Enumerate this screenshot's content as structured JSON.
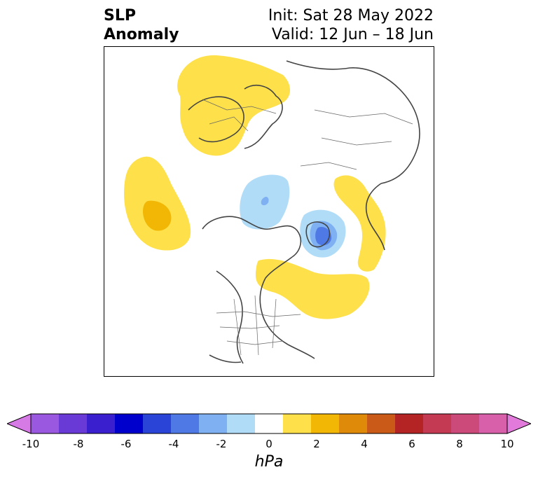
{
  "header": {
    "title_line1": "SLP",
    "title_line2": "Anomaly",
    "init_text": "Init: Sat 28 May 2022",
    "valid_text": "Valid: 12 Jun – 18 Jun"
  },
  "colorbar": {
    "units": "hPa",
    "ticks": [
      "-10",
      "-8",
      "-6",
      "-4",
      "-2",
      "0",
      "2",
      "4",
      "6",
      "8",
      "10"
    ],
    "colors": [
      "#d67ae6",
      "#9a57e0",
      "#6a3ad6",
      "#3a1fcf",
      "#0000cc",
      "#2a44d8",
      "#4f7ae6",
      "#7fb0f2",
      "#b0dcf8",
      "#ffffff",
      "#fde04a",
      "#f2b705",
      "#e08a0a",
      "#c95a18",
      "#b42424",
      "#c43a52",
      "#cc4a7a",
      "#d860aa",
      "#e27adb"
    ],
    "extend": "both"
  },
  "map": {
    "region": "Northern Hemisphere polar stereographic",
    "features": [
      {
        "name": "positive-anomaly-europe",
        "sign": "positive",
        "max_hPa": 2
      },
      {
        "name": "positive-anomaly-atlantic",
        "sign": "positive",
        "max_hPa": 4
      },
      {
        "name": "negative-anomaly-arctic",
        "sign": "negative",
        "min_hPa": -4
      },
      {
        "name": "negative-anomaly-hudson",
        "sign": "negative",
        "min_hPa": -6
      },
      {
        "name": "positive-anomaly-alaska",
        "sign": "positive",
        "max_hPa": 2
      },
      {
        "name": "positive-anomaly-canada",
        "sign": "positive",
        "max_hPa": 2
      }
    ]
  }
}
